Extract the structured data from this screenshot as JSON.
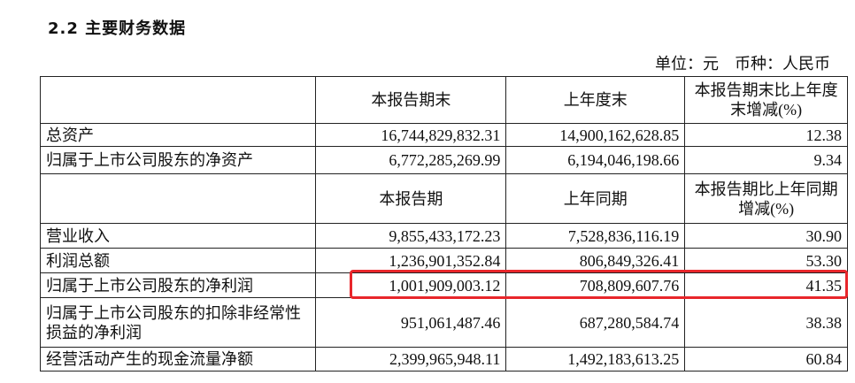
{
  "title": "2.2 主要财务数据",
  "unit_note": "单位：元　币种：人民币",
  "header1": [
    "",
    "本报告期末",
    "上年度末",
    "本报告期末比上年度末增减(%)"
  ],
  "rows1": [
    {
      "label": "总资产",
      "current": "16,744,829,832.31",
      "previous": "14,900,162,628.85",
      "change": "12.38"
    },
    {
      "label": "归属于上市公司股东的净资产",
      "current": "6,772,285,269.99",
      "previous": "6,194,046,198.66",
      "change": "9.34"
    }
  ],
  "header2": [
    "",
    "本报告期",
    "上年同期",
    "本报告期比上年同期增减(%)"
  ],
  "rows2": [
    {
      "label": "营业收入",
      "current": "9,855,433,172.23",
      "previous": "7,528,836,116.19",
      "change": "30.90"
    },
    {
      "label": "利润总额",
      "current": "1,236,901,352.84",
      "previous": "806,849,326.41",
      "change": "53.30"
    },
    {
      "label": "归属于上市公司股东的净利润",
      "current": "1,001,909,003.12",
      "previous": "708,809,607.76",
      "change": "41.35"
    },
    {
      "label": "归属于上市公司股东的扣除非经常性损益的净利润",
      "current": "951,061,487.46",
      "previous": "687,280,584.74",
      "change": "38.38"
    },
    {
      "label": "经营活动产生的现金流量净额",
      "current": "2,399,965,948.11",
      "previous": "1,492,183,613.25",
      "change": "60.84"
    }
  ],
  "highlight_color": "#e8262b"
}
